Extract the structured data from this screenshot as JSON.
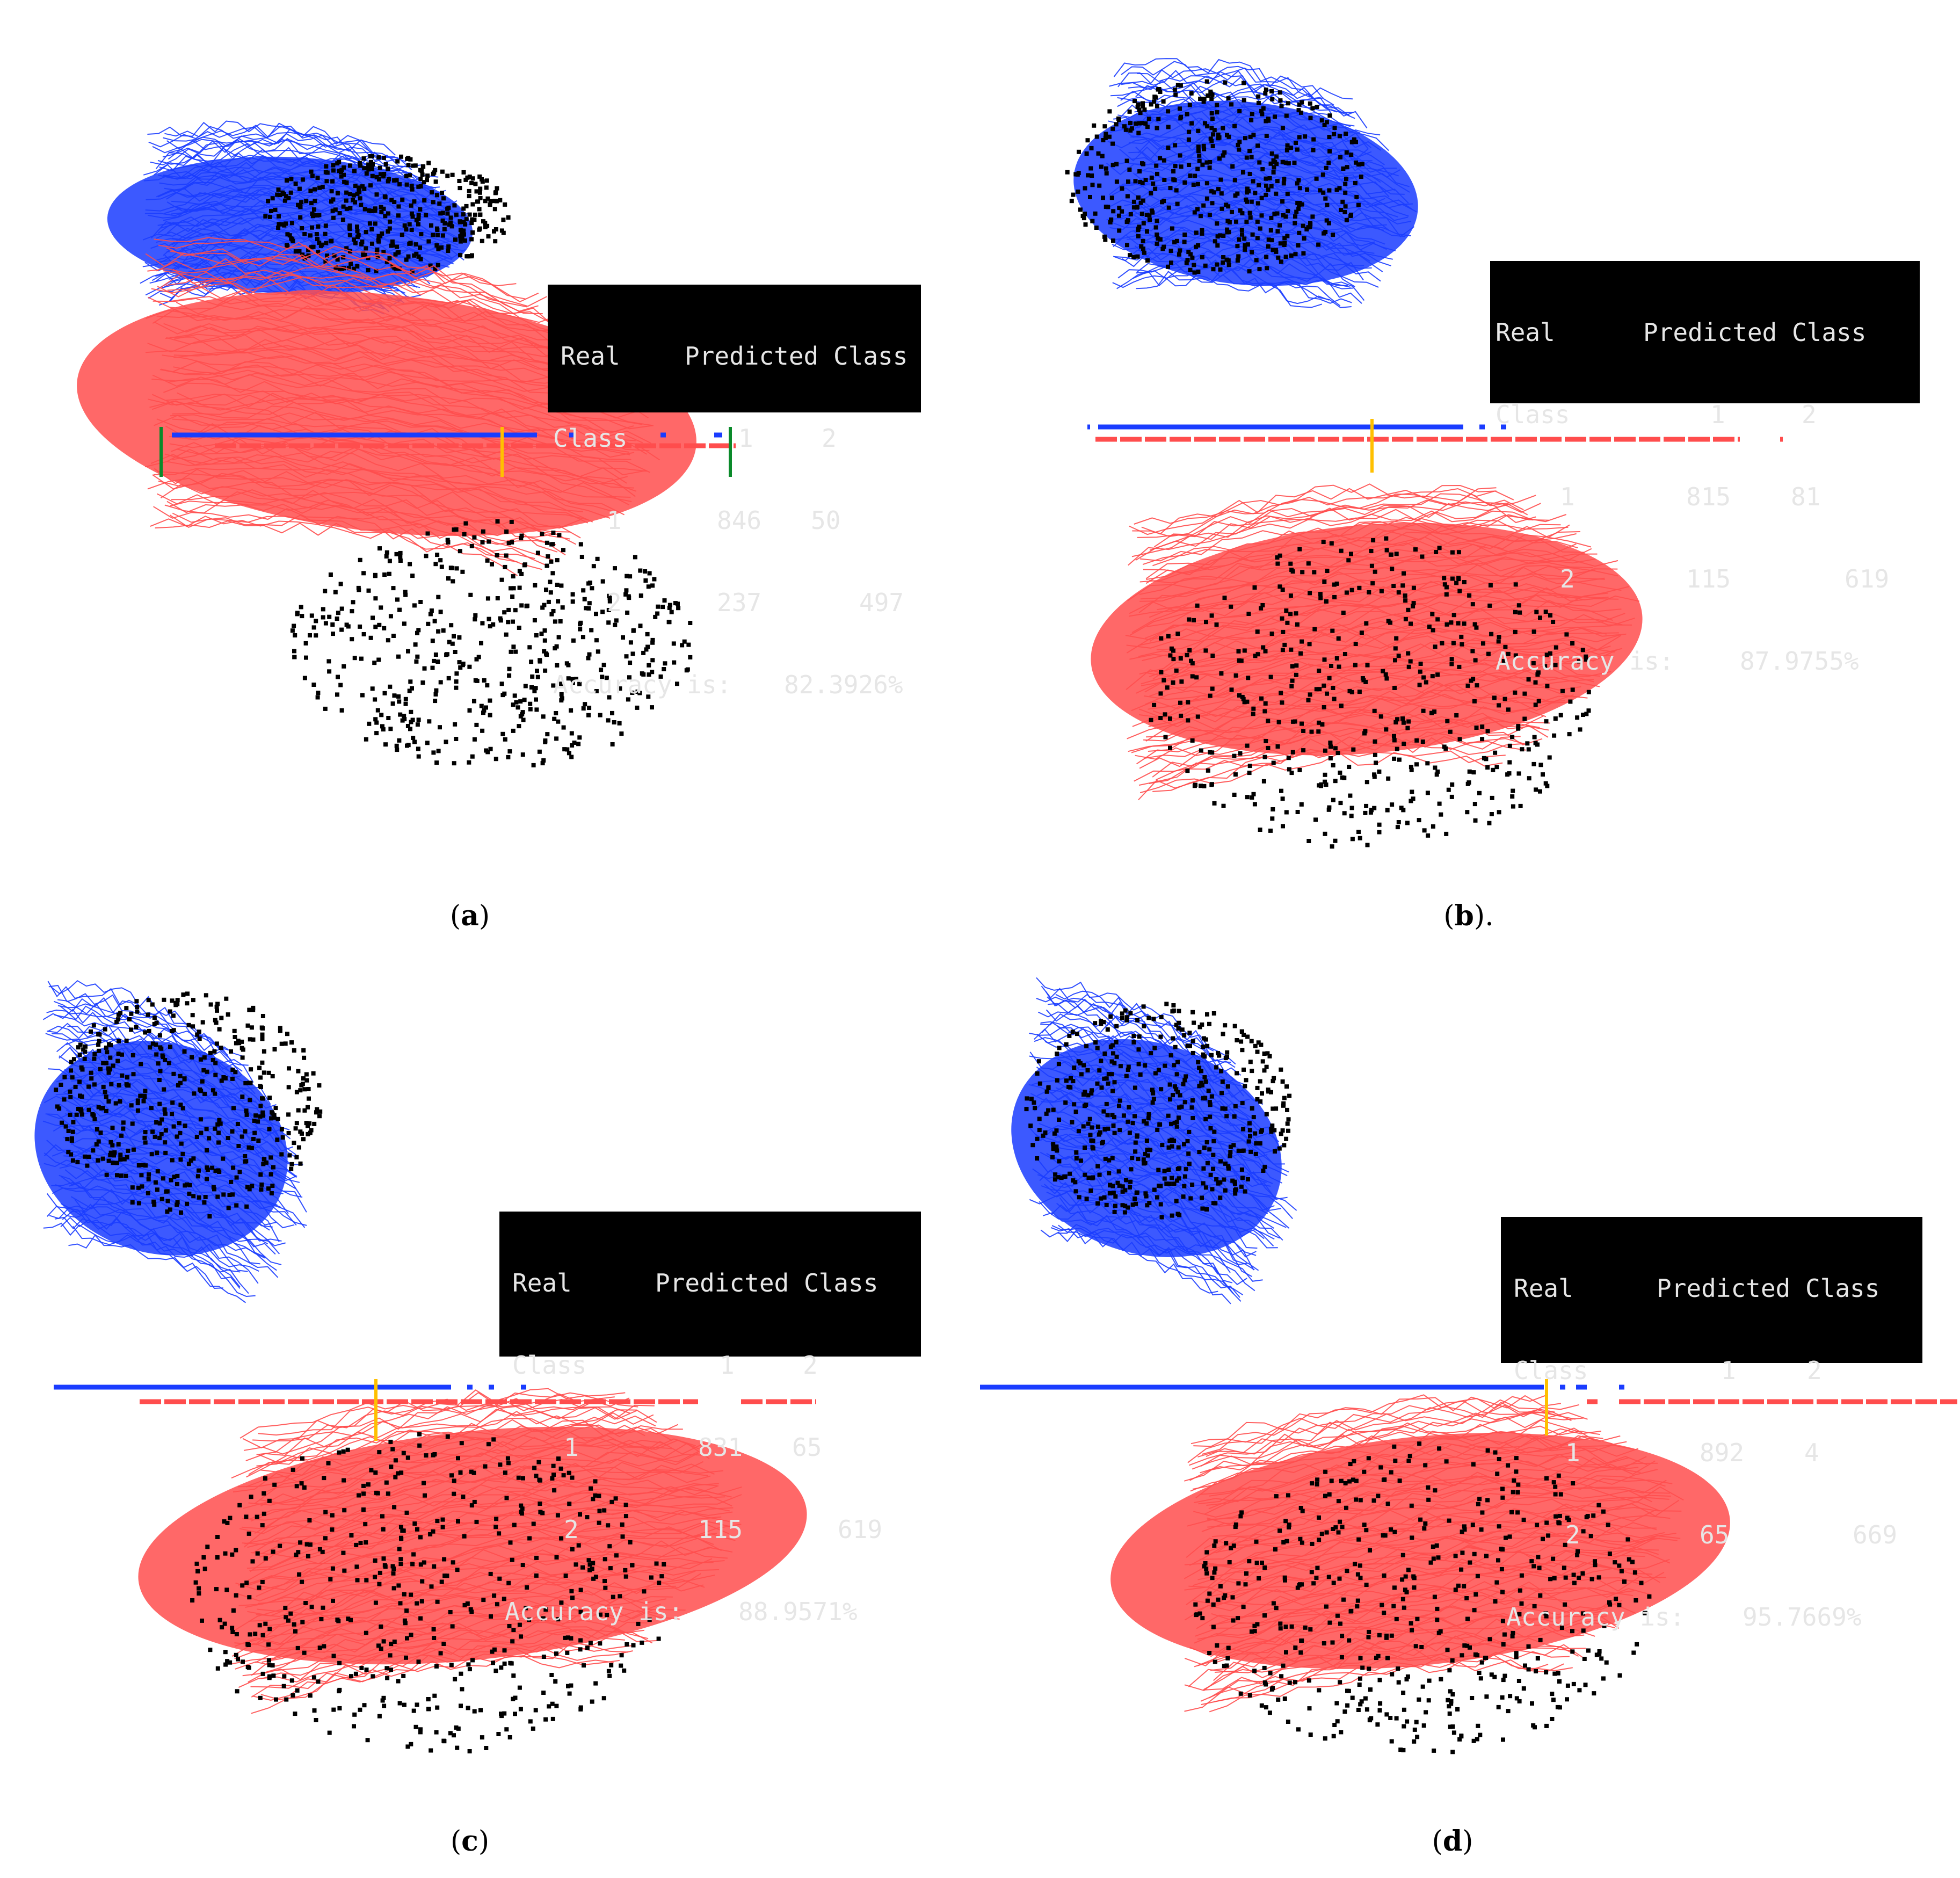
{
  "chart_data": [
    {
      "type": "line",
      "panel": "a",
      "caption_letter": "a",
      "caption_suffix": "",
      "cm": {
        "h_real": "Real",
        "h_pred": "Predicted Class",
        "h_class": "Class",
        "c1": "1",
        "c2": "2",
        "r1": "1",
        "r1c1": "846",
        "r1c2": "50",
        "r2": "2",
        "r2c1": "237",
        "r2c2": "497",
        "acc_label": "Accuracy is:",
        "acc_value": "82.3926%"
      },
      "has_green_bounds": true,
      "blue_color": "#1a3cff",
      "red_color": "#ff4d4d",
      "threshold_color": "#ffc000"
    },
    {
      "type": "line",
      "panel": "b",
      "caption_letter": "b",
      "caption_suffix": ".",
      "cm": {
        "h_real": "Real",
        "h_pred": "Predicted Class",
        "h_class": "Class",
        "c1": "1",
        "c2": "2",
        "r1": "1",
        "r1c1": "815",
        "r1c2": "81",
        "r2": "2",
        "r2c1": "115",
        "r2c2": "619",
        "acc_label": "Accuracy is:",
        "acc_value": "87.9755%"
      },
      "has_green_bounds": false,
      "blue_color": "#1a3cff",
      "red_color": "#ff4d4d",
      "threshold_color": "#ffc000"
    },
    {
      "type": "line",
      "panel": "c",
      "caption_letter": "c",
      "caption_suffix": "",
      "cm": {
        "h_real": "Real",
        "h_pred": "Predicted Class",
        "h_class": "Class",
        "c1": "1",
        "c2": "2",
        "r1": "1",
        "r1c1": "831",
        "r1c2": "65",
        "r2": "2",
        "r2c1": "115",
        "r2c2": "619",
        "acc_label": "Accuracy is:",
        "acc_value": "88.9571%"
      },
      "has_green_bounds": false,
      "blue_color": "#1a3cff",
      "red_color": "#ff4d4d",
      "threshold_color": "#ffc000"
    },
    {
      "type": "line",
      "panel": "d",
      "caption_letter": "d",
      "caption_suffix": "",
      "cm": {
        "h_real": "Real",
        "h_pred": "Predicted Class",
        "h_class": "Class",
        "c1": "1",
        "c2": "2",
        "r1": "1",
        "r1c1": "892",
        "r1c2": "4",
        "r2": "2",
        "r2c1": "65",
        "r2c2": "669",
        "acc_label": "Accuracy is:",
        "acc_value": "95.7669%"
      },
      "has_green_bounds": false,
      "blue_color": "#1a3cff",
      "red_color": "#ff4d4d",
      "threshold_color": "#ffc000"
    }
  ]
}
